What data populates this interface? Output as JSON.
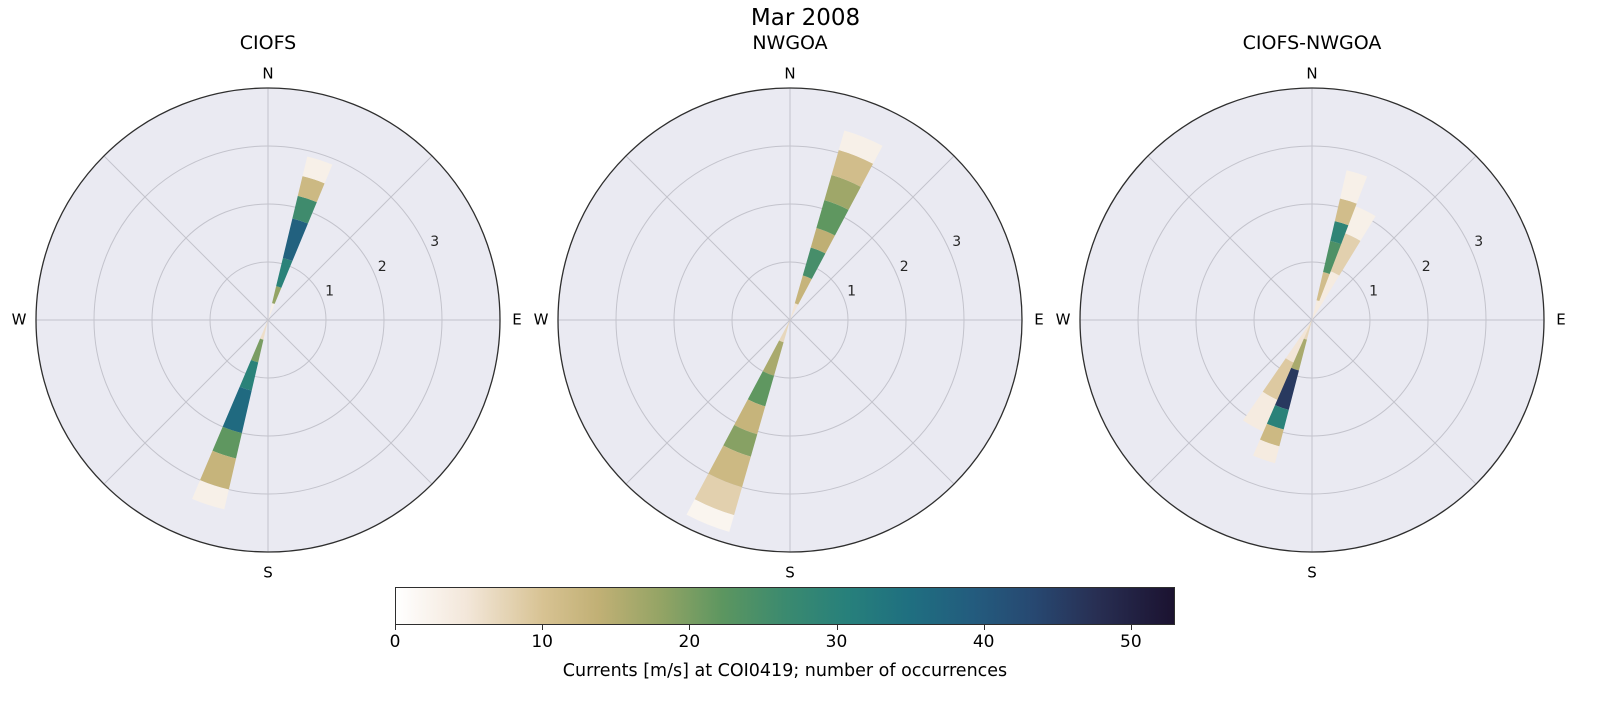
{
  "figure": {
    "suptitle": "Mar 2008",
    "colors": {
      "axes_background": "#eaeaf2",
      "grid": "#c3c3cc",
      "edge": "#2e2e2e",
      "text": "#000000",
      "tick_text": "#262626"
    },
    "colorbar": {
      "label": "Currents [m/s] at COI0419; number of occurrences",
      "ticks": [
        0,
        10,
        20,
        30,
        40,
        50
      ],
      "vmin": 0,
      "vmax": 53,
      "colormap_stops": [
        {
          "t": 0.0,
          "color": "#ffffff"
        },
        {
          "t": 0.09,
          "color": "#f3e7da"
        },
        {
          "t": 0.19,
          "color": "#d7c292"
        },
        {
          "t": 0.26,
          "color": "#c1b075"
        },
        {
          "t": 0.34,
          "color": "#94a465"
        },
        {
          "t": 0.42,
          "color": "#5c9660"
        },
        {
          "t": 0.5,
          "color": "#3b8a6f"
        },
        {
          "t": 0.58,
          "color": "#27807b"
        },
        {
          "t": 0.66,
          "color": "#1f6f80"
        },
        {
          "t": 0.74,
          "color": "#235c7e"
        },
        {
          "t": 0.82,
          "color": "#274871"
        },
        {
          "t": 0.9,
          "color": "#282f53"
        },
        {
          "t": 1.0,
          "color": "#1b1230"
        }
      ]
    }
  },
  "chart_data": [
    {
      "type": "polar_stacked_rose",
      "title": "CIOFS",
      "compass_labels": [
        "N",
        "E",
        "S",
        "W"
      ],
      "r_ticks": [
        1,
        2,
        3
      ],
      "r_max": 4,
      "r_label_azimuth_deg": 65,
      "theta_grid_deg": [
        0,
        45,
        90,
        135,
        180,
        225,
        270,
        315
      ],
      "petals": [
        {
          "direction_deg": 18,
          "width_deg": 9,
          "segments": [
            {
              "r0": 0.0,
              "r1": 0.3,
              "value": 3
            },
            {
              "r0": 0.3,
              "r1": 0.6,
              "value": 18
            },
            {
              "r0": 0.6,
              "r1": 1.1,
              "value": 30
            },
            {
              "r0": 1.1,
              "r1": 1.8,
              "value": 38
            },
            {
              "r0": 1.8,
              "r1": 2.2,
              "value": 26
            },
            {
              "r0": 2.2,
              "r1": 2.55,
              "value": 12
            },
            {
              "r0": 2.55,
              "r1": 2.9,
              "value": 3
            }
          ]
        },
        {
          "direction_deg": 198,
          "width_deg": 10,
          "segments": [
            {
              "r0": 0.0,
              "r1": 0.35,
              "value": 6
            },
            {
              "r0": 0.35,
              "r1": 0.75,
              "value": 20
            },
            {
              "r0": 0.75,
              "r1": 1.25,
              "value": 30
            },
            {
              "r0": 1.25,
              "r1": 2.0,
              "value": 36
            },
            {
              "r0": 2.0,
              "r1": 2.45,
              "value": 22
            },
            {
              "r0": 2.45,
              "r1": 3.0,
              "value": 13
            },
            {
              "r0": 3.0,
              "r1": 3.35,
              "value": 3
            }
          ]
        }
      ]
    },
    {
      "type": "polar_stacked_rose",
      "title": "NWGOA",
      "compass_labels": [
        "N",
        "E",
        "S",
        "W"
      ],
      "r_ticks": [
        1,
        2,
        3
      ],
      "r_max": 4,
      "r_label_azimuth_deg": 65,
      "theta_grid_deg": [
        0,
        45,
        90,
        135,
        180,
        225,
        270,
        315
      ],
      "petals": [
        {
          "direction_deg": 22,
          "width_deg": 12,
          "segments": [
            {
              "r0": 0.0,
              "r1": 0.3,
              "value": 5
            },
            {
              "r0": 0.3,
              "r1": 0.8,
              "value": 13
            },
            {
              "r0": 0.8,
              "r1": 1.3,
              "value": 25
            },
            {
              "r0": 1.3,
              "r1": 1.65,
              "value": 14
            },
            {
              "r0": 1.65,
              "r1": 2.15,
              "value": 22
            },
            {
              "r0": 2.15,
              "r1": 2.6,
              "value": 17
            },
            {
              "r0": 2.6,
              "r1": 3.05,
              "value": 11
            },
            {
              "r0": 3.05,
              "r1": 3.4,
              "value": 3
            }
          ]
        },
        {
          "direction_deg": 202,
          "width_deg": 12,
          "segments": [
            {
              "r0": 0.0,
              "r1": 0.4,
              "value": 7
            },
            {
              "r0": 0.4,
              "r1": 1.0,
              "value": 16
            },
            {
              "r0": 1.0,
              "r1": 1.55,
              "value": 22
            },
            {
              "r0": 1.55,
              "r1": 2.05,
              "value": 13
            },
            {
              "r0": 2.05,
              "r1": 2.45,
              "value": 19
            },
            {
              "r0": 2.45,
              "r1": 3.0,
              "value": 12
            },
            {
              "r0": 3.0,
              "r1": 3.5,
              "value": 8
            },
            {
              "r0": 3.5,
              "r1": 3.8,
              "value": 2
            }
          ]
        }
      ]
    },
    {
      "type": "polar_stacked_rose",
      "title": "CIOFS-NWGOA",
      "compass_labels": [
        "N",
        "E",
        "S",
        "W"
      ],
      "r_ticks": [
        1,
        2,
        3
      ],
      "r_max": 4,
      "r_label_azimuth_deg": 65,
      "theta_grid_deg": [
        0,
        45,
        90,
        135,
        180,
        225,
        270,
        315
      ],
      "petals": [
        {
          "direction_deg": 25,
          "width_deg": 13,
          "segments": [
            {
              "r0": 0.0,
              "r1": 0.9,
              "value": 4
            },
            {
              "r0": 0.9,
              "r1": 1.6,
              "value": 8
            },
            {
              "r0": 1.6,
              "r1": 2.1,
              "value": 3
            }
          ]
        },
        {
          "direction_deg": 17,
          "width_deg": 8,
          "segments": [
            {
              "r0": 0.0,
              "r1": 0.35,
              "value": 4
            },
            {
              "r0": 0.35,
              "r1": 0.85,
              "value": 11
            },
            {
              "r0": 0.85,
              "r1": 1.4,
              "value": 24
            },
            {
              "r0": 1.4,
              "r1": 1.75,
              "value": 29
            },
            {
              "r0": 1.75,
              "r1": 2.15,
              "value": 11
            },
            {
              "r0": 2.15,
              "r1": 2.65,
              "value": 3
            }
          ]
        },
        {
          "direction_deg": 208,
          "width_deg": 13,
          "segments": [
            {
              "r0": 0.0,
              "r1": 0.8,
              "value": 5
            },
            {
              "r0": 0.8,
              "r1": 1.5,
              "value": 9
            },
            {
              "r0": 1.5,
              "r1": 2.1,
              "value": 4
            }
          ]
        },
        {
          "direction_deg": 199,
          "width_deg": 9,
          "segments": [
            {
              "r0": 0.0,
              "r1": 0.35,
              "value": 7
            },
            {
              "r0": 0.35,
              "r1": 0.9,
              "value": 16
            },
            {
              "r0": 0.9,
              "r1": 1.6,
              "value": 46
            },
            {
              "r0": 1.6,
              "r1": 1.95,
              "value": 30
            },
            {
              "r0": 1.95,
              "r1": 2.25,
              "value": 12
            },
            {
              "r0": 2.25,
              "r1": 2.55,
              "value": 4
            }
          ]
        }
      ]
    }
  ]
}
